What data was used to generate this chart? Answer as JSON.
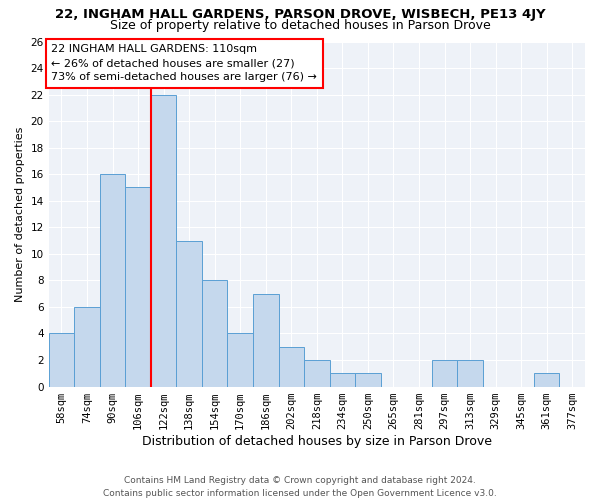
{
  "title_line1": "22, INGHAM HALL GARDENS, PARSON DROVE, WISBECH, PE13 4JY",
  "title_line2": "Size of property relative to detached houses in Parson Drove",
  "xlabel": "Distribution of detached houses by size in Parson Drove",
  "ylabel": "Number of detached properties",
  "categories": [
    "58sqm",
    "74sqm",
    "90sqm",
    "106sqm",
    "122sqm",
    "138sqm",
    "154sqm",
    "170sqm",
    "186sqm",
    "202sqm",
    "218sqm",
    "234sqm",
    "250sqm",
    "265sqm",
    "281sqm",
    "297sqm",
    "313sqm",
    "329sqm",
    "345sqm",
    "361sqm",
    "377sqm"
  ],
  "values": [
    4,
    6,
    16,
    15,
    22,
    11,
    8,
    4,
    7,
    3,
    2,
    1,
    1,
    0,
    0,
    2,
    2,
    0,
    0,
    1,
    0
  ],
  "bar_color": "#c5d8ed",
  "bar_edge_color": "#5a9fd4",
  "vline_x": 3.5,
  "vline_color": "red",
  "annotation_text": "22 INGHAM HALL GARDENS: 110sqm\n← 26% of detached houses are smaller (27)\n73% of semi-detached houses are larger (76) →",
  "annotation_box_color": "white",
  "annotation_box_edge": "red",
  "ylim": [
    0,
    26
  ],
  "yticks": [
    0,
    2,
    4,
    6,
    8,
    10,
    12,
    14,
    16,
    18,
    20,
    22,
    24,
    26
  ],
  "background_color": "#eef2f8",
  "grid_color": "white",
  "footnote": "Contains HM Land Registry data © Crown copyright and database right 2024.\nContains public sector information licensed under the Open Government Licence v3.0.",
  "title_fontsize": 9.5,
  "subtitle_fontsize": 9,
  "xlabel_fontsize": 9,
  "ylabel_fontsize": 8,
  "tick_fontsize": 7.5,
  "annot_fontsize": 8,
  "footnote_fontsize": 6.5
}
